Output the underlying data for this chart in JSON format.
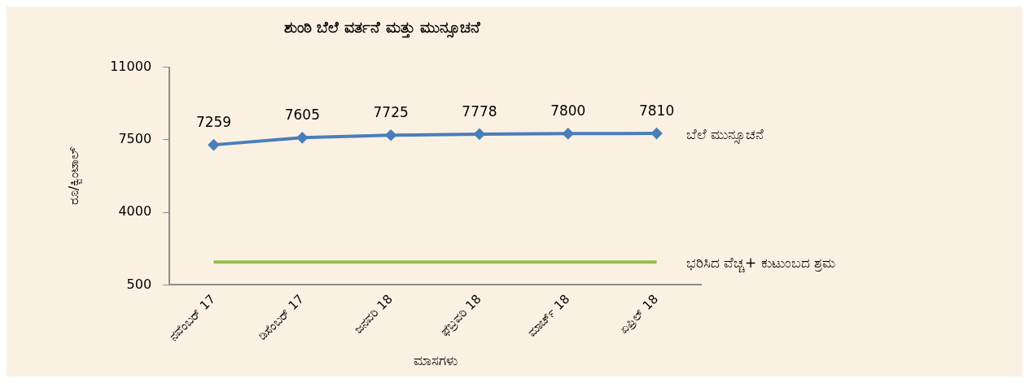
{
  "chart_data": {
    "type": "line",
    "title": "ಶುಂಠಿ ಬೆಲೆ ವರ್ತನೆ ಮತ್ತು ಮುನ್ಸೂಚನೆ",
    "xlabel": "ಮಾಸಗಳು",
    "ylabel": "ರೂ/ಕ್ವಿಂಟಾಲ್",
    "categories": [
      "ನವೆಂಬರ್ 17",
      "ಡಿಸೆಂಬರ್ 17",
      "ಜನವರಿ 18",
      "ಫೆಬ್ರವರಿ 18",
      "ಮಾರ್ಚ್ 18",
      "ಏಪ್ರಿಲ್ 18"
    ],
    "series": [
      {
        "name": "ಬೆಲೆ ಮುನ್ಸೂಚನೆ",
        "color": "#4a7ebb",
        "values": [
          7259,
          7605,
          7725,
          7778,
          7800,
          7810
        ],
        "marker": "diamond",
        "value_labels": [
          "7259",
          "7605",
          "7725",
          "7778",
          "7800",
          "7810"
        ]
      },
      {
        "name": "ಭರಿಸಿದ ವೆಚ್ಚ+ ಕುಟುಂಬದ ಶ್ರಮ",
        "color": "#98bb4e",
        "values": [
          1600,
          1600,
          1600,
          1600,
          1600,
          1600
        ],
        "marker": "none"
      }
    ],
    "ylim": [
      500,
      11000
    ],
    "yticks": [
      500,
      4000,
      7500,
      11000
    ],
    "grid": false,
    "legend": false
  }
}
